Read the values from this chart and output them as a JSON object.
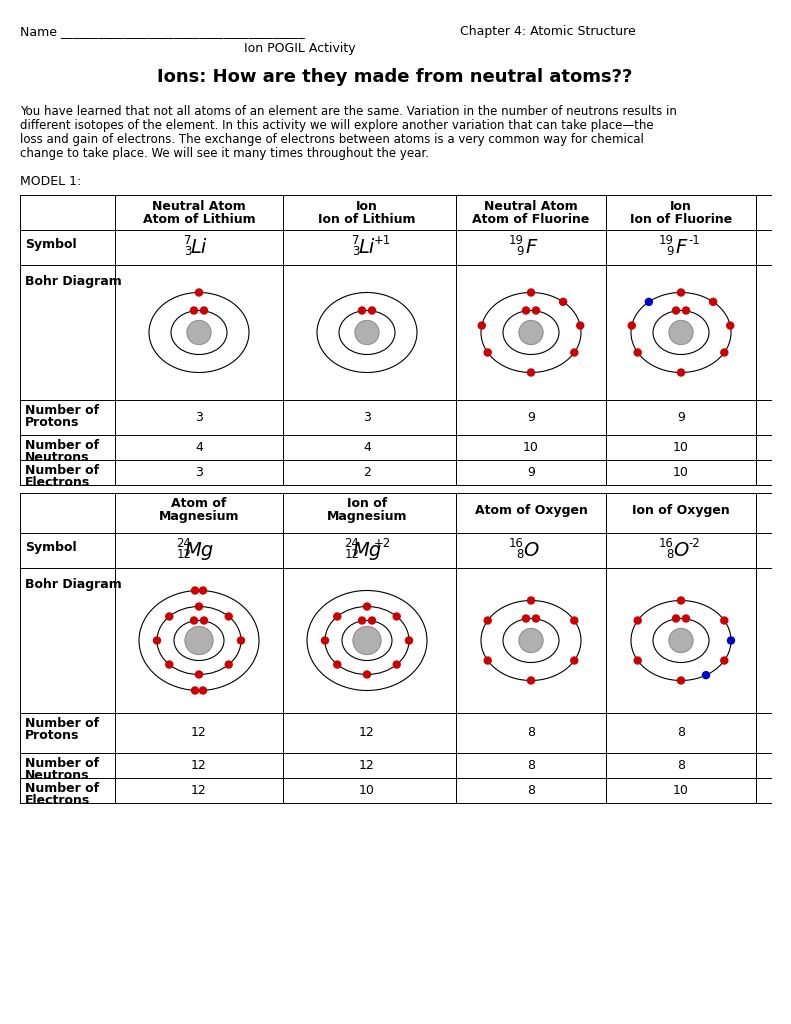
{
  "title": "Ions: How are they made from neutral atoms??",
  "header_line1": "Name _______________________________________    Chapter 4: Atomic Structure",
  "header_line2": "Ion POGIL Activity",
  "intro_text": "You have learned that not all atoms of an element are the same. Variation in the number of neutrons results in\ndifferent isotopes of the element. In this activity we will explore another variation that can take place—the\nloss and gain of electrons. The exchange of electrons between atoms is a very common way for chemical\nchange to take place. We will see it many times throughout the year.",
  "model_label": "MODEL 1:",
  "bg_color": "#ffffff",
  "text_color": "#000000",
  "red_color": "#cc0000",
  "blue_color": "#0000cc",
  "gray_color": "#b0b0b0",
  "table1": {
    "col_headers": [
      "",
      "Neutral Atom\nAtom of Lithium",
      "Ion\nIon of Lithium",
      "",
      "Neutral Atom\nAtom of Fluorine",
      "Ion\nIon of Fluorine"
    ],
    "symbol_row": [
      "Symbol",
      "7/3 Li",
      "7/3 Li+1",
      "",
      "19/9 F",
      "19/9 F-1"
    ],
    "bohr_row_label": "Bohr Diagram",
    "data_rows": [
      [
        "Number of\nProtons",
        "3",
        "3",
        "",
        "9",
        "9"
      ],
      [
        "Number of\nNeutrons",
        "4",
        "4",
        "",
        "10",
        "10"
      ],
      [
        "Number of\nElectrons",
        "3",
        "2",
        "",
        "9",
        "10"
      ]
    ]
  },
  "table2": {
    "col_headers": [
      "",
      "Atom of\nMagnesium",
      "Ion of\nMagnesium",
      "",
      "Atom of Oxygen",
      "Ion of Oxygen"
    ],
    "symbol_row": [
      "Symbol",
      "24/12 Mg",
      "24/12 Mg+2",
      "",
      "16/8 O",
      "16/8 O-2"
    ],
    "bohr_row_label": "Bohr Diagram",
    "data_rows": [
      [
        "Number of\nProtons",
        "12",
        "12",
        "",
        "8",
        "8"
      ],
      [
        "Number of\nNeutrons",
        "12",
        "12",
        "",
        "8",
        "8"
      ],
      [
        "Number of\nElectrons",
        "12",
        "10",
        "",
        "8",
        "10"
      ]
    ]
  }
}
